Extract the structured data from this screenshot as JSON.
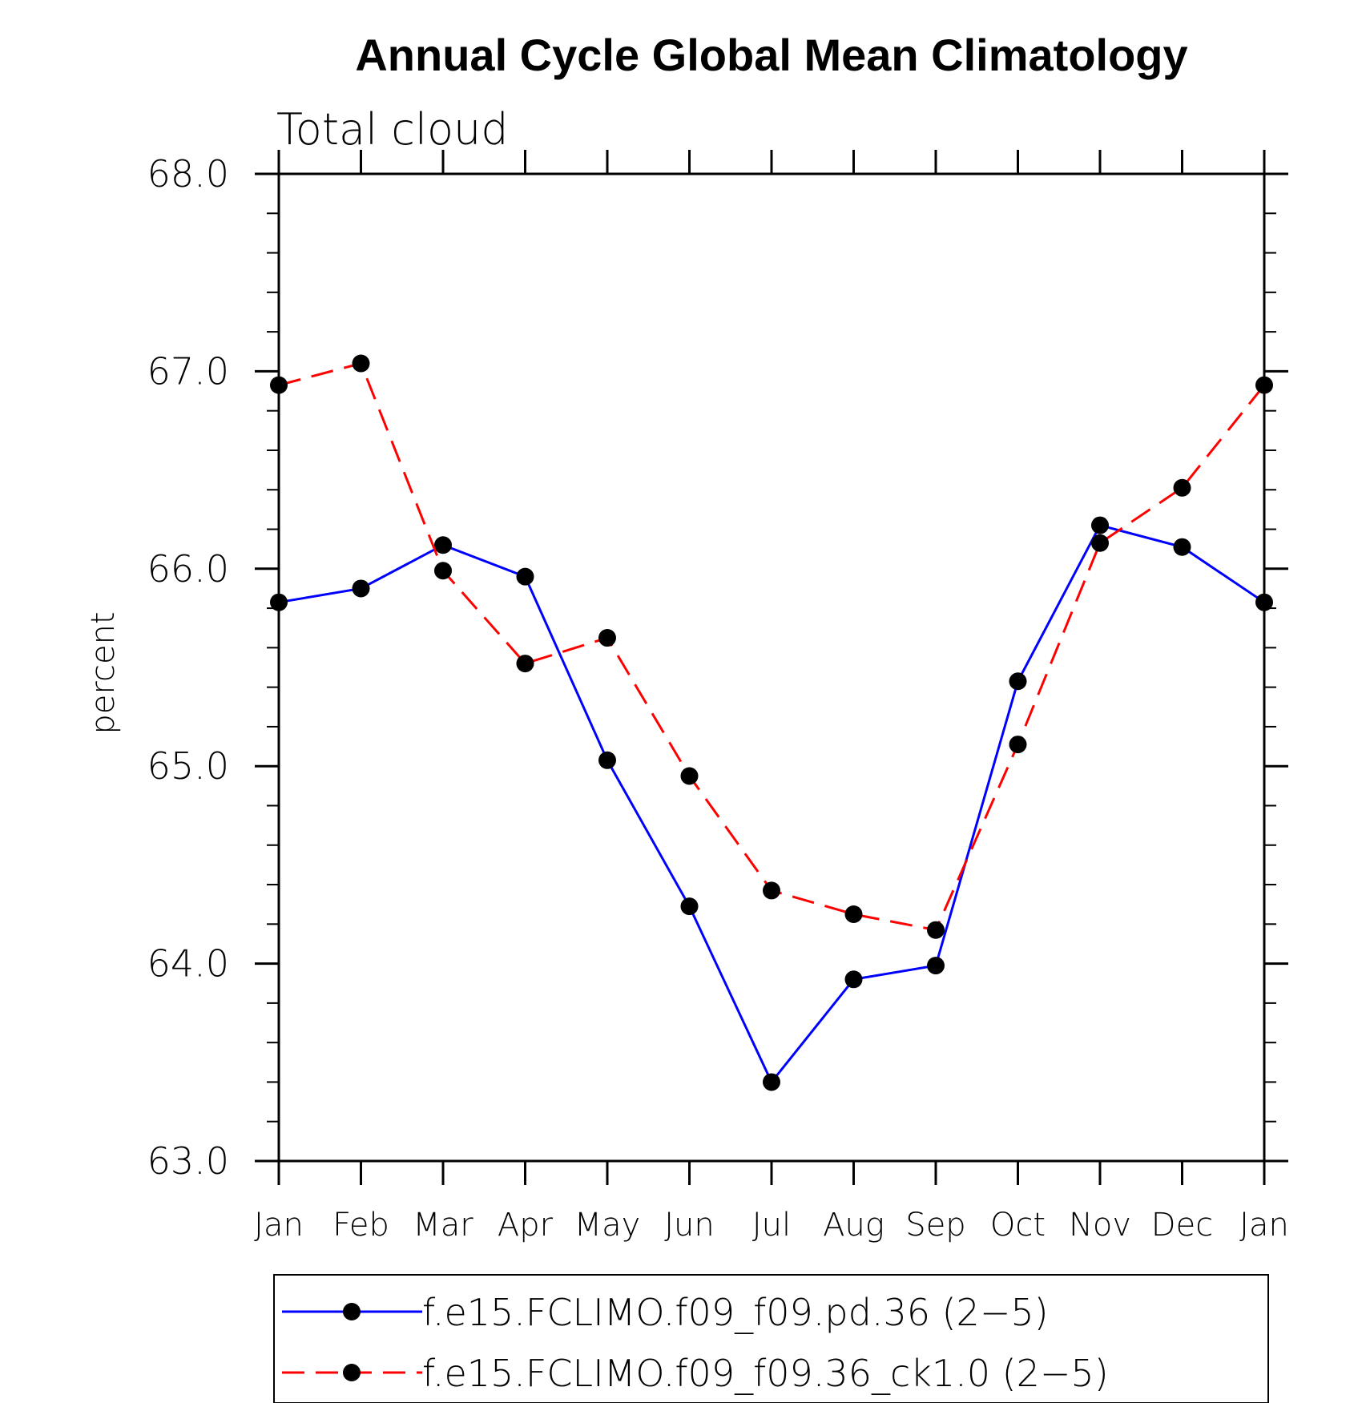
{
  "chart_data": {
    "type": "line",
    "title": "Annual Cycle Global Mean Climatology",
    "subtitle": "Total cloud",
    "xlabel": "",
    "ylabel": "percent",
    "ylim": [
      63.0,
      68.0
    ],
    "yticks": [
      "63.0",
      "64.0",
      "65.0",
      "66.0",
      "67.0",
      "68.0"
    ],
    "ytick_values": [
      63.0,
      64.0,
      65.0,
      66.0,
      67.0,
      68.0
    ],
    "yminor_step": 0.2,
    "categories": [
      "Jan",
      "Feb",
      "Mar",
      "Apr",
      "May",
      "Jun",
      "Jul",
      "Aug",
      "Sep",
      "Oct",
      "Nov",
      "Dec",
      "Jan"
    ],
    "grid": false,
    "legend_position": "bottom",
    "series": [
      {
        "name": "f.e15.FCLIMO.f09_f09.pd.36 (2−5)",
        "color": "#0000ff",
        "dash": "solid",
        "marker": "filled-circle",
        "values": [
          65.83,
          65.9,
          66.12,
          65.96,
          65.03,
          64.29,
          63.4,
          63.92,
          63.99,
          65.43,
          66.22,
          66.11,
          65.83
        ]
      },
      {
        "name": "f.e15.FCLIMO.f09_f09.36_ck1.0 (2−5)",
        "color": "#ff0000",
        "dash": "dashed",
        "marker": "filled-circle",
        "values": [
          66.93,
          67.04,
          65.99,
          65.52,
          65.65,
          64.95,
          64.37,
          64.25,
          64.17,
          65.11,
          66.13,
          66.41,
          66.93
        ]
      }
    ]
  }
}
